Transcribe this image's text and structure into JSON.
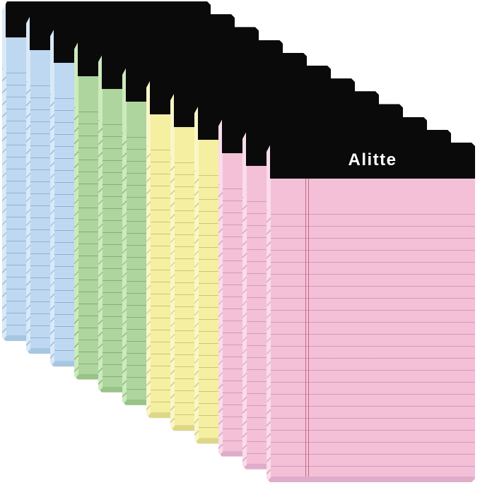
{
  "scene": {
    "type": "product photograph",
    "description": "Twelve pastel-colored mini lined notepads (legal pads) with black top bindings, fanned out in a diagonal cascade from back upper-left to front lower-right. Three pads each of blue, green, yellow and pink. The front pink pad shows the brand name on its black binding and a double red margin line on the ruled paper.",
    "background_color": "#ffffff"
  },
  "brand": "Alitte",
  "palette": {
    "binding": "#0a0a0b",
    "margin_line": "#b0506a",
    "blue": {
      "paper": "#bdd8f0",
      "line": "#8aabcc",
      "edge": "#d9e9f8",
      "shade": "#a7c6e2"
    },
    "green": {
      "paper": "#aed59d",
      "line": "#7da96b",
      "edge": "#cdeabe",
      "shade": "#98c487"
    },
    "yellow": {
      "paper": "#f4efa1",
      "line": "#c7be73",
      "edge": "#faf6c9",
      "shade": "#ded788"
    },
    "pink": {
      "paper": "#f4c0d8",
      "line": "#ca94b3",
      "edge": "#fadcea",
      "shade": "#dfadc9"
    }
  },
  "pads": [
    {
      "order": 1,
      "color": "blue",
      "front": false
    },
    {
      "order": 2,
      "color": "blue",
      "front": false
    },
    {
      "order": 3,
      "color": "blue",
      "front": false
    },
    {
      "order": 4,
      "color": "green",
      "front": false
    },
    {
      "order": 5,
      "color": "green",
      "front": false
    },
    {
      "order": 6,
      "color": "green",
      "front": false
    },
    {
      "order": 7,
      "color": "yellow",
      "front": false
    },
    {
      "order": 8,
      "color": "yellow",
      "front": false
    },
    {
      "order": 9,
      "color": "yellow",
      "front": false
    },
    {
      "order": 10,
      "color": "pink",
      "front": false
    },
    {
      "order": 11,
      "color": "pink",
      "front": false
    },
    {
      "order": 12,
      "color": "pink",
      "front": true
    }
  ]
}
